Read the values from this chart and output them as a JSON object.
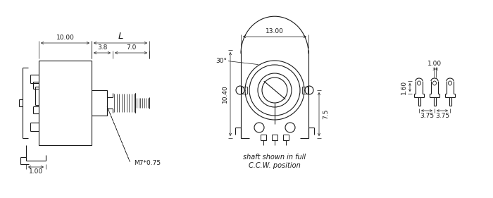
{
  "bg_color": "#ffffff",
  "line_color": "#1a1a1a",
  "dim_color": "#1a1a1a",
  "text_color": "#1a1a1a",
  "annotations": {
    "dim_10": "10.00",
    "dim_L": "L",
    "dim_3_8": "3.8",
    "dim_7_0": "7.0",
    "dim_1_00_left": "1.00",
    "dim_M7": "M7*0.75",
    "dim_13": "13.00",
    "dim_30": "30°",
    "dim_10_40": "10.40",
    "dim_7_5": "7.5",
    "dim_1_00_right": "1.00",
    "dim_1_60": "1.60",
    "dim_3_75_left": "3.75",
    "dim_3_75_right": "3.75",
    "caption1": "shaft shown in full",
    "caption2": "C.C.W. position"
  },
  "font_size_label": 6.5,
  "font_size_caption": 7.0
}
